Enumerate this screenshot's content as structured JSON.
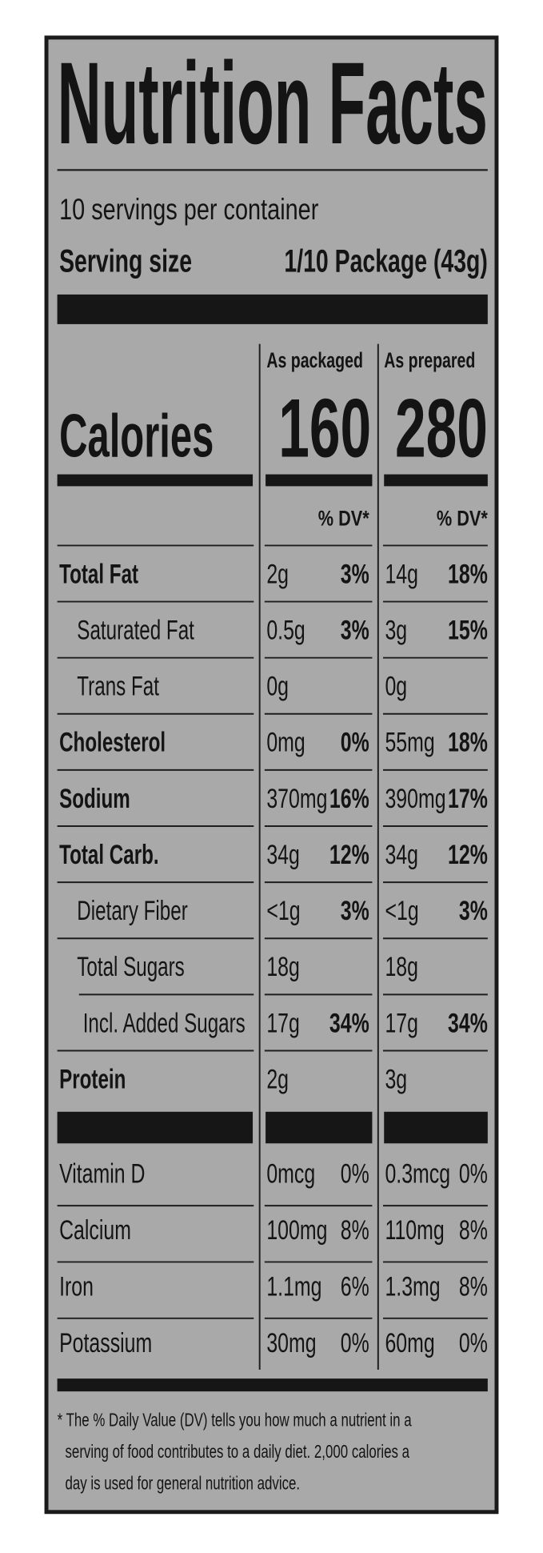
{
  "header": {
    "title": "Nutrition Facts",
    "servings": "10 servings per container",
    "serving_size_label": "Serving size",
    "serving_size_value": "1/10 Package (43g)"
  },
  "columns": [
    "As packaged",
    "As prepared"
  ],
  "calories": {
    "label": "Calories",
    "values": [
      "160",
      "280"
    ]
  },
  "dv_header": [
    "% DV*",
    "% DV*"
  ],
  "nutrients": [
    {
      "name": "Total Fat",
      "level": 0,
      "packaged": {
        "amount": "2g",
        "dv": "3%"
      },
      "prepared": {
        "amount": "14g",
        "dv": "18%"
      }
    },
    {
      "name": "Saturated Fat",
      "level": 1,
      "packaged": {
        "amount": "0.5g",
        "dv": "3%"
      },
      "prepared": {
        "amount": "3g",
        "dv": "15%"
      }
    },
    {
      "name": "Trans Fat",
      "level": 1,
      "packaged": {
        "amount": "0g"
      },
      "prepared": {
        "amount": "0g"
      }
    },
    {
      "name": "Cholesterol",
      "level": 0,
      "packaged": {
        "amount": "0mg",
        "dv": "0%"
      },
      "prepared": {
        "amount": "55mg",
        "dv": "18%"
      }
    },
    {
      "name": "Sodium",
      "level": 0,
      "packaged": {
        "amount": "370mg",
        "dv": "16%"
      },
      "prepared": {
        "amount": "390mg",
        "dv": "17%"
      }
    },
    {
      "name": "Total Carb.",
      "level": 0,
      "packaged": {
        "amount": "34g",
        "dv": "12%"
      },
      "prepared": {
        "amount": "34g",
        "dv": "12%"
      }
    },
    {
      "name": "Dietary Fiber",
      "level": 1,
      "packaged": {
        "amount": "<1g",
        "dv": "3%"
      },
      "prepared": {
        "amount": "<1g",
        "dv": "3%"
      }
    },
    {
      "name": "Total Sugars",
      "level": 1,
      "packaged": {
        "amount": "18g"
      },
      "prepared": {
        "amount": "18g"
      }
    },
    {
      "name": "Incl. Added Sugars",
      "level": 2,
      "packaged": {
        "amount": "17g",
        "dv": "34%"
      },
      "prepared": {
        "amount": "17g",
        "dv": "34%"
      }
    },
    {
      "name": "Protein",
      "level": 0,
      "packaged": {
        "amount": "2g"
      },
      "prepared": {
        "amount": "3g"
      }
    }
  ],
  "vitamins": [
    {
      "name": "Vitamin D",
      "packaged": {
        "amount": "0mcg",
        "dv": "0%"
      },
      "prepared": {
        "amount": "0.3mcg",
        "dv": "0%"
      }
    },
    {
      "name": "Calcium",
      "packaged": {
        "amount": "100mg",
        "dv": "8%"
      },
      "prepared": {
        "amount": "110mg",
        "dv": "8%"
      }
    },
    {
      "name": "Iron",
      "packaged": {
        "amount": "1.1mg",
        "dv": "6%"
      },
      "prepared": {
        "amount": "1.3mg",
        "dv": "8%"
      }
    },
    {
      "name": "Potassium",
      "packaged": {
        "amount": "30mg",
        "dv": "0%"
      },
      "prepared": {
        "amount": "60mg",
        "dv": "0%"
      }
    }
  ],
  "footnote": [
    "* The % Daily Value (DV) tells you how much a nutrient in a",
    "serving of food contributes to a daily diet. 2,000 calories a",
    "day is used for general nutrition advice."
  ]
}
